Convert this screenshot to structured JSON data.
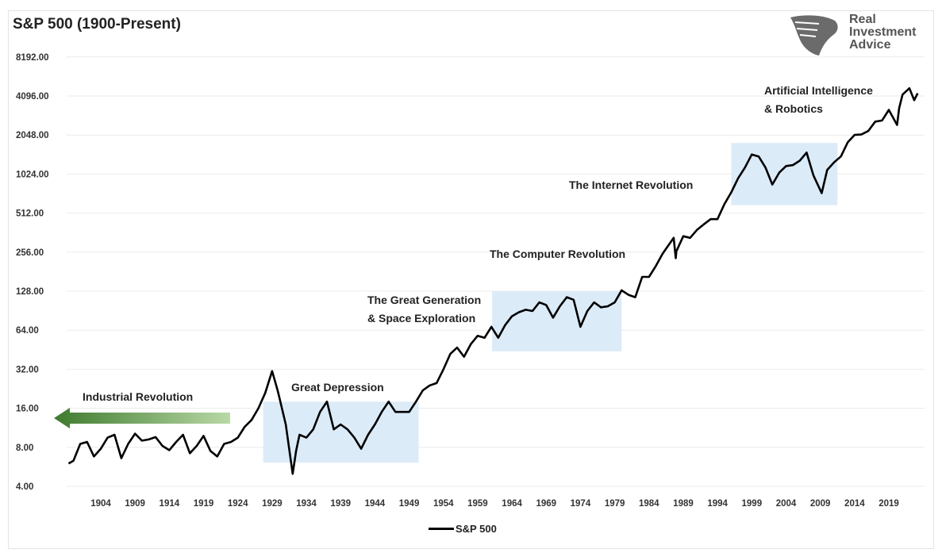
{
  "chart_data": {
    "type": "line",
    "title": "S&P 500 (1900-Present)",
    "xlabel": "",
    "ylabel": "",
    "yscale": "log2",
    "ylim": [
      4,
      8192
    ],
    "xlim": [
      1899,
      2024
    ],
    "y_ticks": [
      "4.00",
      "8.00",
      "16.00",
      "32.00",
      "64.00",
      "128.00",
      "256.00",
      "512.00",
      "1024.00",
      "2048.00",
      "4096.00",
      "8192.00"
    ],
    "y_tick_values": [
      4,
      8,
      16,
      32,
      64,
      128,
      256,
      512,
      1024,
      2048,
      4096,
      8192
    ],
    "x_ticks": [
      "1904",
      "1909",
      "1914",
      "1919",
      "1924",
      "1929",
      "1934",
      "1939",
      "1944",
      "1949",
      "1954",
      "1959",
      "1964",
      "1969",
      "1974",
      "1979",
      "1984",
      "1989",
      "1994",
      "1999",
      "2004",
      "2009",
      "2014",
      "2019"
    ],
    "grid": true,
    "legend": {
      "position": "bottom",
      "entries": [
        "S&P 500"
      ]
    },
    "series": [
      {
        "name": "S&P 500",
        "color": "#000000",
        "x": [
          1899.3,
          1900,
          1901,
          1902,
          1903,
          1904,
          1905,
          1906,
          1907,
          1908,
          1909,
          1910,
          1911,
          1912,
          1913,
          1914,
          1915,
          1916,
          1917,
          1918,
          1919,
          1920,
          1921,
          1922,
          1923,
          1924,
          1925,
          1926,
          1927,
          1928,
          1929,
          1929.8,
          1930,
          1931,
          1932,
          1932.5,
          1933,
          1934,
          1935,
          1936,
          1937,
          1938,
          1939,
          1940,
          1941,
          1942,
          1943,
          1944,
          1945,
          1946,
          1947,
          1948,
          1949,
          1950,
          1951,
          1952,
          1953,
          1954,
          1955,
          1956,
          1957,
          1958,
          1959,
          1960,
          1961,
          1962,
          1963,
          1964,
          1965,
          1966,
          1967,
          1968,
          1969,
          1970,
          1971,
          1972,
          1973,
          1974,
          1975,
          1976,
          1977,
          1978,
          1979,
          1980,
          1981,
          1982,
          1983,
          1984,
          1985,
          1986,
          1987.6,
          1987.9,
          1988,
          1989,
          1990,
          1991,
          1992,
          1993,
          1994,
          1995,
          1996,
          1997,
          1998,
          1999,
          2000,
          2001,
          2002,
          2003,
          2004,
          2005,
          2006,
          2007,
          2008,
          2009.2,
          2010,
          2011,
          2012,
          2013,
          2014,
          2015,
          2016,
          2017,
          2018,
          2019,
          2020.2,
          2020.5,
          2021,
          2022,
          2022.7,
          2023.2
        ],
        "values": [
          6.0,
          6.3,
          8.5,
          8.8,
          6.8,
          7.8,
          9.5,
          10.0,
          6.6,
          8.5,
          10.2,
          9.0,
          9.2,
          9.6,
          8.2,
          7.6,
          8.8,
          10.0,
          7.2,
          8.2,
          9.8,
          7.5,
          6.8,
          8.5,
          8.8,
          9.5,
          11.5,
          13,
          16,
          21,
          31,
          22,
          20,
          12,
          5.0,
          7.5,
          10,
          9.5,
          11,
          15,
          18,
          11,
          12,
          11,
          9.5,
          7.8,
          10,
          12,
          15,
          18,
          15,
          15,
          15,
          18,
          22,
          24,
          25,
          32,
          42,
          47,
          40,
          50,
          58,
          56,
          68,
          56,
          70,
          82,
          88,
          92,
          90,
          105,
          100,
          80,
          98,
          115,
          110,
          68,
          90,
          105,
          96,
          98,
          105,
          130,
          120,
          115,
          165,
          165,
          200,
          250,
          330,
          230,
          260,
          340,
          330,
          380,
          420,
          460,
          460,
          600,
          740,
          950,
          1150,
          1450,
          1400,
          1150,
          850,
          1050,
          1180,
          1200,
          1300,
          1500,
          1000,
          730,
          1100,
          1260,
          1400,
          1800,
          2050,
          2070,
          2200,
          2600,
          2650,
          3200,
          2450,
          3300,
          4200,
          4700,
          3800,
          4300
        ]
      }
    ],
    "annotations": [
      "Industrial Revolution",
      "Great Depression",
      "The Great Generation",
      "& Space Exploration",
      "The Computer Revolution",
      "The Internet Revolution",
      "Artificial Intelligence",
      "& Robotics"
    ],
    "highlight_regions": [
      {
        "label": "Great Depression",
        "x": [
          1927.7,
          1950.4
        ],
        "y": [
          6.1,
          18
        ]
      },
      {
        "label": "The Great Generation & Space Exploration",
        "x": [
          1961.1,
          1980
        ],
        "y": [
          44,
          128
        ]
      },
      {
        "label": "The Internet Revolution",
        "x": [
          1996,
          2011.5
        ],
        "y": [
          590,
          1780
        ]
      }
    ],
    "highlight_color": "#dcebf8",
    "arrow_color": "#3e7a2e"
  },
  "logo": {
    "line1": "Real",
    "line2": "Investment",
    "line3": "Advice"
  }
}
